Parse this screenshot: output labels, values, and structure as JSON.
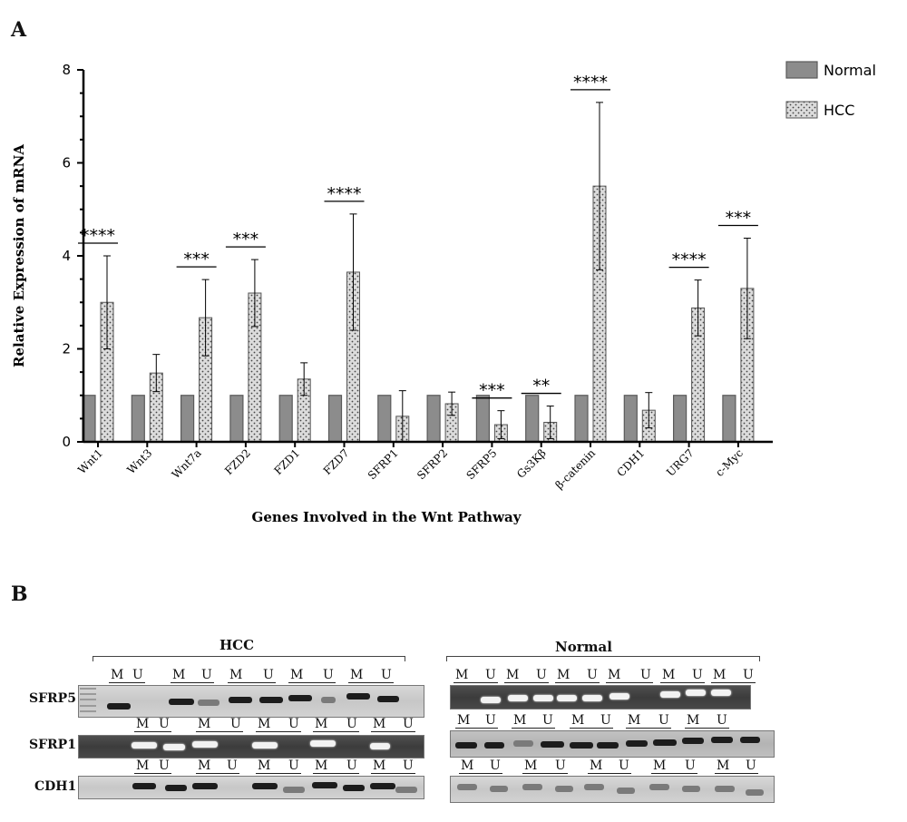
{
  "panel_a_label": "A",
  "panel_b_label": "B",
  "chart_data": {
    "type": "bar",
    "xlabel": "Genes Involved in the Wnt Pathway",
    "ylabel": "Relative Expression of mRNA",
    "ylim": [
      0,
      8
    ],
    "yticks": [
      "0",
      "2",
      "4",
      "6",
      "8"
    ],
    "categories": [
      "Wnt1",
      "Wnt3",
      "Wnt7a",
      "FZD2",
      "FZD1",
      "FZD7",
      "SFRP1",
      "SFRP2",
      "SFRP5",
      "Gs3Kβ",
      "β-catenin",
      "CDH1",
      "URG7",
      "c-Myc"
    ],
    "series": [
      {
        "name": "Normal",
        "values": [
          1,
          1,
          1,
          1,
          1,
          1,
          1,
          1,
          1,
          1,
          1,
          1,
          1,
          1
        ],
        "error": [
          0,
          0,
          0,
          0,
          0,
          0,
          0,
          0,
          0,
          0,
          0,
          0,
          0,
          0
        ]
      },
      {
        "name": "HCC",
        "values": [
          3.0,
          1.48,
          2.67,
          3.2,
          1.35,
          3.65,
          0.55,
          0.82,
          0.37,
          0.42,
          5.5,
          0.68,
          2.88,
          3.3
        ],
        "error": [
          1.0,
          0.4,
          0.82,
          0.72,
          0.35,
          1.25,
          0.55,
          0.25,
          0.3,
          0.35,
          1.8,
          0.38,
          0.6,
          1.08
        ]
      }
    ],
    "significance": [
      "****",
      "",
      "***",
      "***",
      "",
      "****",
      "",
      "",
      "***",
      "**",
      "****",
      "",
      "****",
      "***"
    ],
    "legend_position": "top-right",
    "grid": false
  },
  "gel": {
    "hcc_label": "HCC",
    "normal_label": "Normal",
    "rows": [
      "SFRP5",
      "SFRP1",
      "CDH1"
    ],
    "m_label": "M",
    "u_label": "U"
  }
}
